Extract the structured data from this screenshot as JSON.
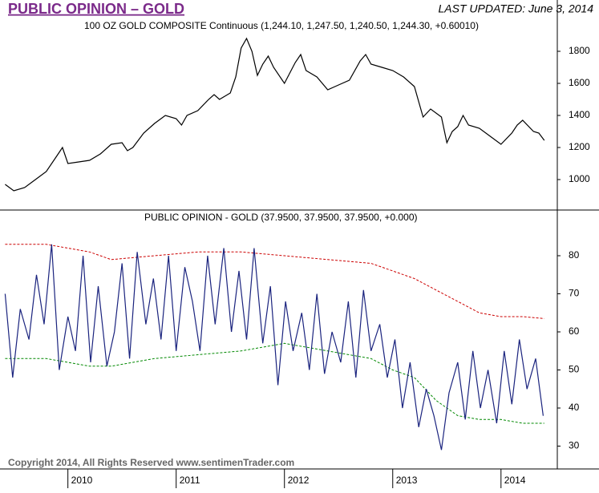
{
  "header": {
    "title": "PUBLIC OPINION – GOLD",
    "updated": "LAST UPDATED:  June 3, 2014"
  },
  "footer": {
    "copyright": "Copyright 2014, All Rights Reserved  www.sentimenTrader.com"
  },
  "chart_data": [
    {
      "type": "line",
      "title": "100 OZ GOLD COMPOSITE Continuous (1,244.10, 1,247.50, 1,240.50, 1,244.30, +0.60010)",
      "xlim": [
        2009.41,
        2014.52
      ],
      "ylim": [
        810,
        2020
      ],
      "yticks": [
        1000,
        1200,
        1400,
        1600,
        1800
      ],
      "series": [
        {
          "color": "#000000",
          "x": [
            2009.42,
            2009.5,
            2009.6,
            2009.7,
            2009.8,
            2009.9,
            2009.95,
            2010.0,
            2010.1,
            2010.2,
            2010.3,
            2010.4,
            2010.5,
            2010.55,
            2010.6,
            2010.7,
            2010.8,
            2010.9,
            2011.0,
            2011.05,
            2011.1,
            2011.2,
            2011.3,
            2011.35,
            2011.4,
            2011.5,
            2011.55,
            2011.6,
            2011.65,
            2011.7,
            2011.75,
            2011.8,
            2011.85,
            2011.9,
            2012.0,
            2012.1,
            2012.15,
            2012.2,
            2012.3,
            2012.4,
            2012.5,
            2012.6,
            2012.7,
            2012.75,
            2012.8,
            2012.9,
            2013.0,
            2013.1,
            2013.2,
            2013.28,
            2013.35,
            2013.45,
            2013.5,
            2013.55,
            2013.6,
            2013.65,
            2013.7,
            2013.8,
            2013.9,
            2014.0,
            2014.1,
            2014.15,
            2014.2,
            2014.3,
            2014.35,
            2014.4
          ],
          "values": [
            970,
            930,
            950,
            1000,
            1050,
            1150,
            1200,
            1100,
            1110,
            1120,
            1160,
            1220,
            1230,
            1180,
            1200,
            1290,
            1350,
            1400,
            1380,
            1340,
            1400,
            1430,
            1500,
            1530,
            1500,
            1540,
            1640,
            1820,
            1880,
            1800,
            1650,
            1720,
            1770,
            1700,
            1600,
            1730,
            1780,
            1680,
            1640,
            1560,
            1590,
            1620,
            1740,
            1780,
            1720,
            1700,
            1680,
            1640,
            1580,
            1390,
            1440,
            1390,
            1230,
            1300,
            1330,
            1400,
            1340,
            1320,
            1270,
            1220,
            1290,
            1340,
            1370,
            1300,
            1290,
            1244.3
          ]
        }
      ]
    },
    {
      "type": "line",
      "title": "PUBLIC OPINION - GOLD (37.9500, 37.9500, 37.9500, +0.000)",
      "xlim": [
        2009.41,
        2014.52
      ],
      "ylim": [
        24,
        92
      ],
      "yticks": [
        30,
        40,
        50,
        60,
        70,
        80
      ],
      "xticks": [
        2010,
        2011,
        2012,
        2013,
        2014
      ],
      "series": [
        {
          "color": "#cc0000",
          "dashed": true,
          "x": [
            2009.42,
            2009.8,
            2010.2,
            2010.4,
            2010.8,
            2011.2,
            2011.6,
            2012.0,
            2012.4,
            2012.8,
            2013.0,
            2013.2,
            2013.4,
            2013.6,
            2013.8,
            2014.0,
            2014.2,
            2014.4
          ],
          "values": [
            83,
            83,
            81,
            79,
            80,
            81,
            81,
            80,
            79,
            78,
            76,
            74,
            71,
            68,
            65,
            64,
            64,
            63.5
          ]
        },
        {
          "color": "#008800",
          "dashed": true,
          "x": [
            2009.42,
            2009.8,
            2010.2,
            2010.4,
            2010.8,
            2011.2,
            2011.6,
            2012.0,
            2012.4,
            2012.8,
            2013.0,
            2013.2,
            2013.4,
            2013.6,
            2013.8,
            2014.0,
            2014.2,
            2014.4
          ],
          "values": [
            53,
            53,
            51,
            51,
            53,
            54,
            55,
            57,
            55,
            53,
            50,
            48,
            42,
            38,
            37,
            37,
            36,
            36
          ]
        },
        {
          "color": "#1a237e",
          "x": [
            2009.42,
            2009.49,
            2009.56,
            2009.64,
            2009.71,
            2009.78,
            2009.85,
            2009.92,
            2010.0,
            2010.07,
            2010.14,
            2010.21,
            2010.28,
            2010.36,
            2010.43,
            2010.5,
            2010.57,
            2010.64,
            2010.72,
            2010.79,
            2010.86,
            2010.93,
            2011.0,
            2011.08,
            2011.15,
            2011.22,
            2011.29,
            2011.36,
            2011.44,
            2011.51,
            2011.58,
            2011.65,
            2011.72,
            2011.8,
            2011.87,
            2011.94,
            2012.01,
            2012.08,
            2012.16,
            2012.23,
            2012.3,
            2012.37,
            2012.44,
            2012.52,
            2012.59,
            2012.66,
            2012.73,
            2012.8,
            2012.88,
            2012.95,
            2013.02,
            2013.09,
            2013.16,
            2013.24,
            2013.31,
            2013.38,
            2013.45,
            2013.52,
            2013.6,
            2013.67,
            2013.74,
            2013.81,
            2013.88,
            2013.96,
            2014.03,
            2014.1,
            2014.17,
            2014.24,
            2014.32,
            2014.39
          ],
          "values": [
            70,
            48,
            66,
            58,
            75,
            62,
            83,
            50,
            64,
            55,
            80,
            52,
            72,
            51,
            60,
            78,
            53,
            81,
            62,
            74,
            58,
            80,
            55,
            77,
            68,
            55,
            80,
            62,
            82,
            60,
            76,
            58,
            82,
            57,
            72,
            46,
            68,
            55,
            65,
            50,
            70,
            49,
            60,
            52,
            68,
            48,
            71,
            55,
            62,
            48,
            58,
            40,
            52,
            35,
            45,
            38,
            29,
            44,
            52,
            37,
            55,
            40,
            50,
            36,
            55,
            41,
            58,
            45,
            53,
            37.95
          ]
        }
      ]
    }
  ]
}
